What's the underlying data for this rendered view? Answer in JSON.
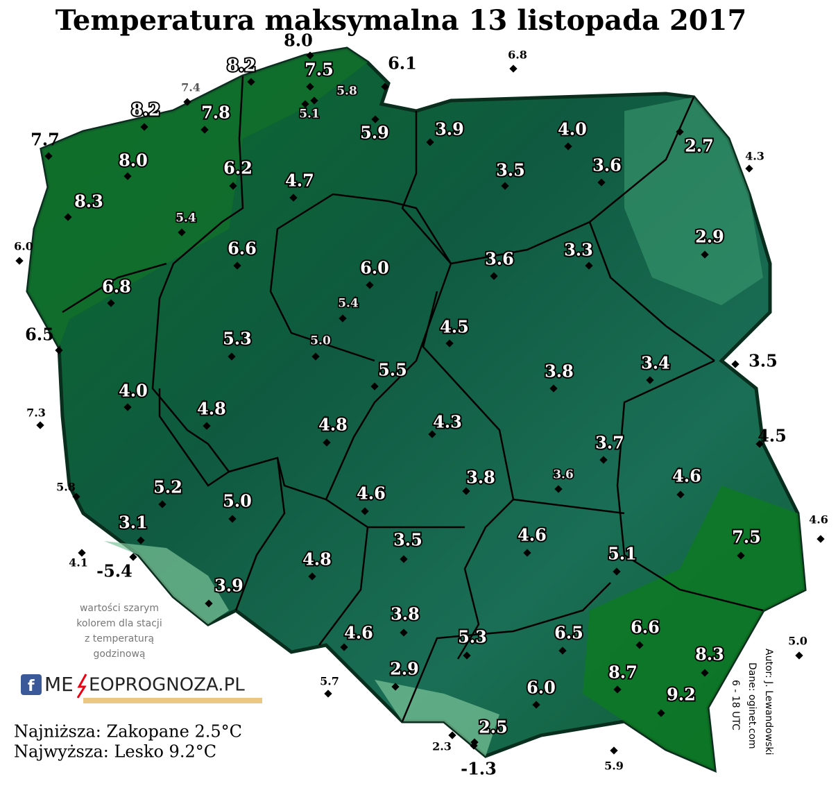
{
  "title": "Temperatura maksymalna 13 listopada 2017",
  "stations": [
    {
      "label": "8.0",
      "style": "large"
    },
    {
      "label": "6.1",
      "style": "large"
    },
    {
      "label": "6.8",
      "style": "small"
    },
    {
      "label": "7.4",
      "style": "small-gray"
    },
    {
      "label": "7.7",
      "style": "large"
    },
    {
      "label": "4.3",
      "style": "small"
    },
    {
      "label": "6.0",
      "style": "small"
    },
    {
      "label": "6.5",
      "style": "large"
    },
    {
      "label": "7.3",
      "style": "small"
    },
    {
      "label": "3.5",
      "style": "large"
    },
    {
      "label": "4.5",
      "style": "large"
    },
    {
      "label": "5.8",
      "style": "small"
    },
    {
      "label": "4.6",
      "style": "small"
    },
    {
      "label": "4.1",
      "style": "small"
    },
    {
      "label": "-5.4",
      "style": "large"
    },
    {
      "label": "5.0",
      "style": "small"
    },
    {
      "label": "5.7",
      "style": "small"
    },
    {
      "label": "2.3",
      "style": "small"
    },
    {
      "label": "-1.3",
      "style": "large"
    },
    {
      "label": "5.9",
      "style": "small"
    },
    {
      "label": "8.2",
      "style": "white"
    },
    {
      "label": "7.5",
      "style": "white"
    },
    {
      "label": "5.8",
      "style": "gray"
    },
    {
      "label": "7.8",
      "style": "white"
    },
    {
      "label": "5.1",
      "style": "gray"
    },
    {
      "label": "5.9",
      "style": "white"
    },
    {
      "label": "8.2",
      "style": "white"
    },
    {
      "label": "3.9",
      "style": "white"
    },
    {
      "label": "4.0",
      "style": "white"
    },
    {
      "label": "2.7",
      "style": "white"
    },
    {
      "label": "8.0",
      "style": "white"
    },
    {
      "label": "6.2",
      "style": "white"
    },
    {
      "label": "4.7",
      "style": "white"
    },
    {
      "label": "3.5",
      "style": "white"
    },
    {
      "label": "3.6",
      "style": "white"
    },
    {
      "label": "8.3",
      "style": "white"
    },
    {
      "label": "5.4",
      "style": "gray"
    },
    {
      "label": "6.6",
      "style": "white"
    },
    {
      "label": "2.9",
      "style": "white"
    },
    {
      "label": "3.6",
      "style": "white"
    },
    {
      "label": "3.3",
      "style": "white"
    },
    {
      "label": "6.0",
      "style": "white"
    },
    {
      "label": "6.8",
      "style": "white"
    },
    {
      "label": "5.4",
      "style": "gray"
    },
    {
      "label": "4.5",
      "style": "white"
    },
    {
      "label": "5.3",
      "style": "white"
    },
    {
      "label": "5.0",
      "style": "gray"
    },
    {
      "label": "5.5",
      "style": "white"
    },
    {
      "label": "3.8",
      "style": "white"
    },
    {
      "label": "3.4",
      "style": "white"
    },
    {
      "label": "4.0",
      "style": "white"
    },
    {
      "label": "4.8",
      "style": "white"
    },
    {
      "label": "4.8",
      "style": "white"
    },
    {
      "label": "4.3",
      "style": "white"
    },
    {
      "label": "3.7",
      "style": "white"
    },
    {
      "label": "5.2",
      "style": "white"
    },
    {
      "label": "5.0",
      "style": "white"
    },
    {
      "label": "3.8",
      "style": "white"
    },
    {
      "label": "3.6",
      "style": "gray"
    },
    {
      "label": "4.6",
      "style": "white"
    },
    {
      "label": "4.6",
      "style": "white"
    },
    {
      "label": "3.1",
      "style": "white"
    },
    {
      "label": "3.5",
      "style": "white"
    },
    {
      "label": "4.6",
      "style": "white"
    },
    {
      "label": "7.5",
      "style": "white"
    },
    {
      "label": "5.1",
      "style": "white"
    },
    {
      "label": "4.8",
      "style": "white"
    },
    {
      "label": "3.9",
      "style": "white"
    },
    {
      "label": "3.8",
      "style": "white"
    },
    {
      "label": "4.6",
      "style": "white"
    },
    {
      "label": "5.3",
      "style": "white"
    },
    {
      "label": "6.5",
      "style": "white"
    },
    {
      "label": "6.6",
      "style": "white"
    },
    {
      "label": "8.3",
      "style": "white"
    },
    {
      "label": "8.7",
      "style": "white"
    },
    {
      "label": "2.9",
      "style": "white"
    },
    {
      "label": "6.0",
      "style": "white"
    },
    {
      "label": "9.2",
      "style": "white"
    },
    {
      "label": "2.5",
      "style": "white"
    }
  ],
  "note": [
    "wartości szarym",
    "kolorem dla stacji",
    "z temperaturą",
    "godzinową"
  ],
  "logo": [
    "ME",
    "EOPROGNOZA.PL"
  ],
  "summary": [
    "Najniższa: Zakopane 2.5°C",
    "Najwyższa: Lesko 9.2°C"
  ],
  "credits": [
    "Autor: J. Lewandowski",
    "Dane: oginet.com",
    "6 - 18 UTC"
  ]
}
